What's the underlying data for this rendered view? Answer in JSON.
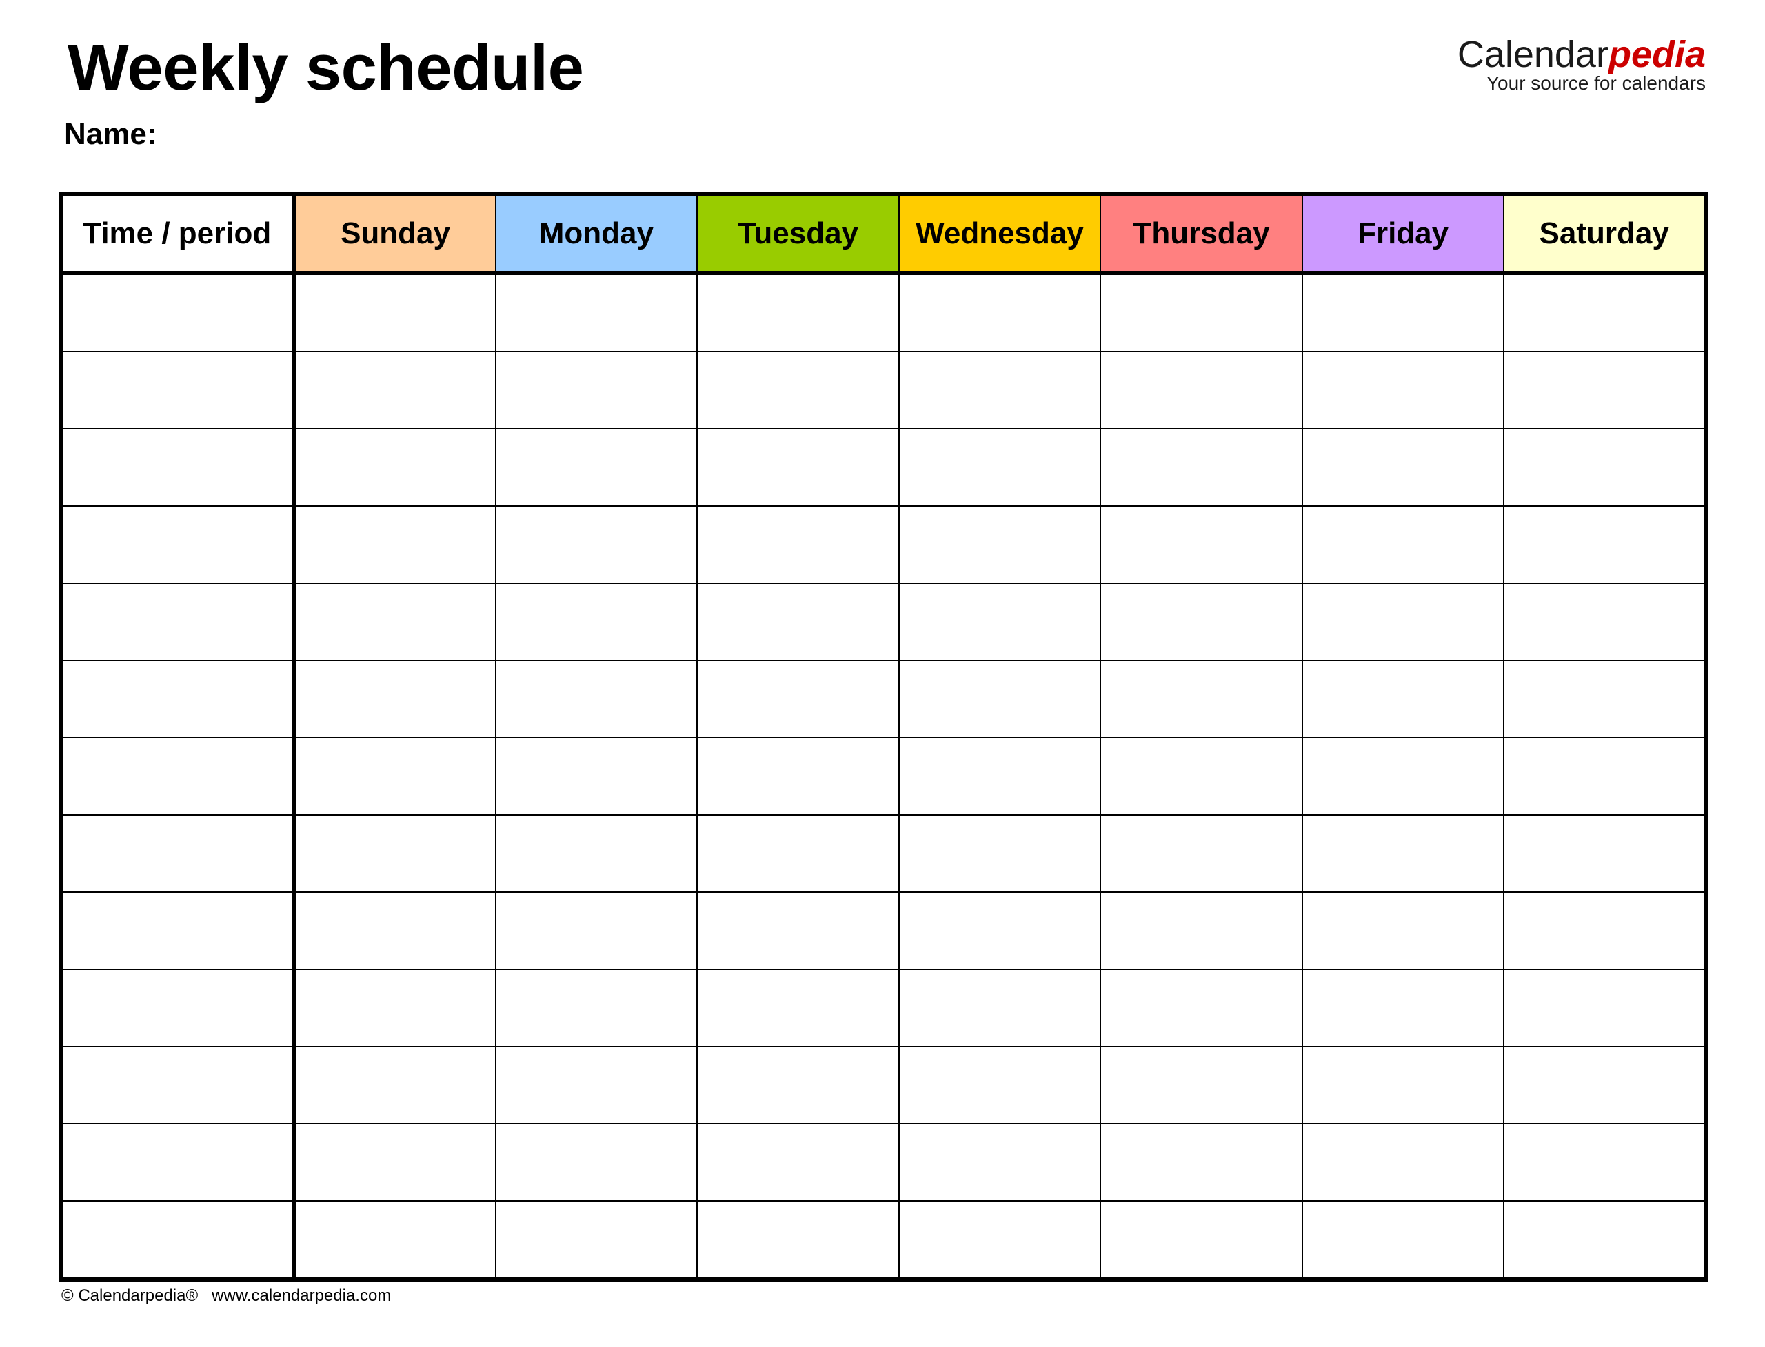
{
  "title": "Weekly schedule",
  "name_label": "Name:",
  "logo": {
    "brand_main": "Calendar",
    "brand_accent": "pedia",
    "tagline": "Your source for calendars",
    "accent_color": "#cc0000"
  },
  "table": {
    "columns": [
      {
        "label": "Time / period",
        "color": "#ffffff"
      },
      {
        "label": "Sunday",
        "color": "#ffcc99"
      },
      {
        "label": "Monday",
        "color": "#99ccff"
      },
      {
        "label": "Tuesday",
        "color": "#99cc00"
      },
      {
        "label": "Wednesday",
        "color": "#ffcc00"
      },
      {
        "label": "Thursday",
        "color": "#ff8080"
      },
      {
        "label": "Friday",
        "color": "#cc99ff"
      },
      {
        "label": "Saturday",
        "color": "#ffffcc"
      }
    ],
    "row_count": 13
  },
  "footer": {
    "copyright": "© Calendarpedia®",
    "url": "www.calendarpedia.com"
  }
}
